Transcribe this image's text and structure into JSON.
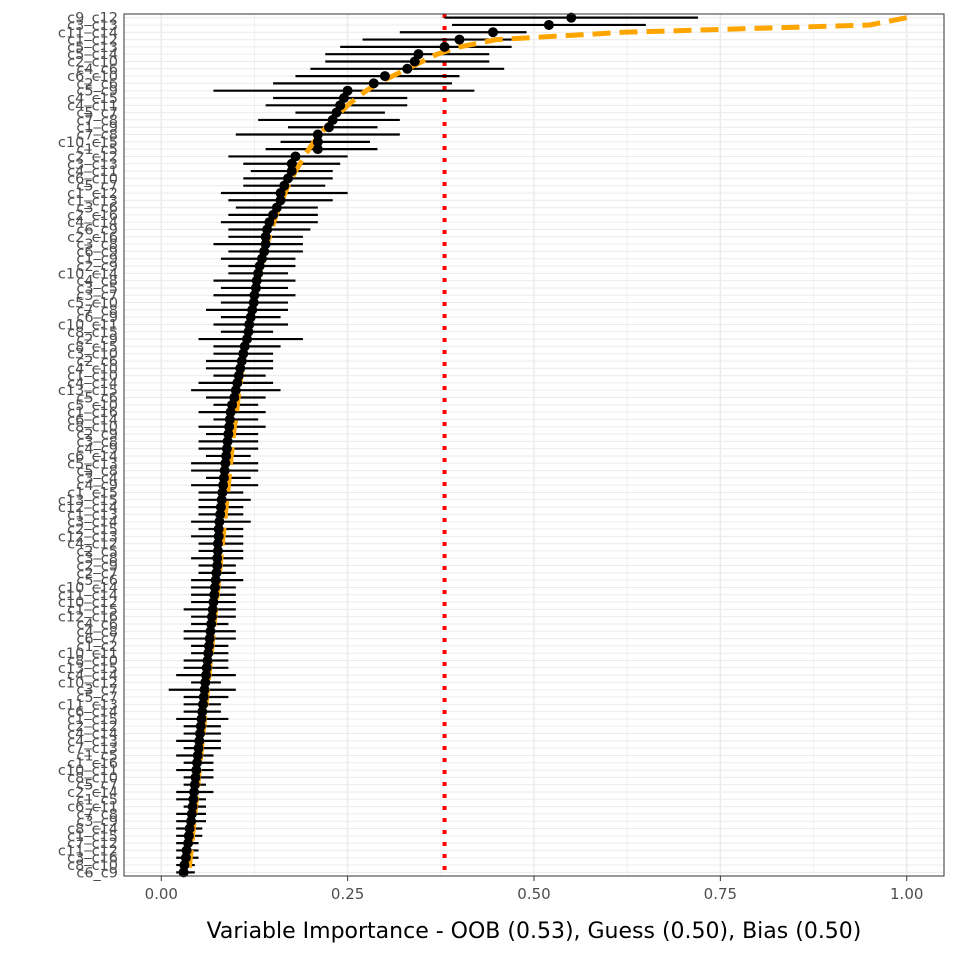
{
  "chart_data": {
    "type": "scatter",
    "title": "",
    "xlabel": "Variable Importance - OOB (0.53), Guess (0.50), Bias (0.50)",
    "ylabel": "",
    "xlim": [
      -0.05,
      1.05
    ],
    "x_ticks": [
      0.0,
      0.25,
      0.5,
      0.75,
      1.0
    ],
    "x_tick_labels": [
      "0.00",
      "0.25",
      "0.50",
      "0.75",
      "1.00"
    ],
    "grid": true,
    "threshold_x": 0.38,
    "colors": {
      "points": "#000000",
      "interval": "#000000",
      "reference_curve": "#FFA500",
      "threshold": "#FF0000",
      "grid_major": "#EBEBEB",
      "grid_minor": "#F2F2F2",
      "panel_border": "#333333"
    },
    "variables": [
      "c9_c12",
      "c3_c13",
      "c11_c14",
      "c1_c12",
      "c5_c13",
      "c5_c14",
      "c2_c10",
      "c4_c6",
      "c6_c10",
      "c2_c6",
      "c5_c9",
      "c4_c15",
      "c4_c11",
      "c5_c7",
      "c7_c8",
      "c1_c9",
      "c7_c8",
      "c10_c15",
      "c1_c5",
      "c2_c12",
      "c3_c13",
      "c4_c11",
      "c6_c10",
      "c5_c7",
      "c1_c12",
      "c1_c13",
      "c3_c6",
      "c2_c16",
      "c4_c14",
      "c6_c9",
      "c2_c16",
      "c3_c8",
      "c6_c9",
      "c1_c9",
      "c2_c9",
      "c10_c14",
      "c4_c8",
      "c3_c5",
      "c3_c7",
      "c5_c10",
      "c7_c8",
      "c6_c9",
      "c10_c11",
      "c8_c15",
      "c2_c9",
      "c8_c15",
      "c3_c10",
      "c2_c6",
      "c4_c10",
      "c1_c10",
      "c4_c14",
      "c13_c15",
      "c5_c6",
      "c5_c10",
      "c1_c16",
      "c6_c14",
      "c8_c10",
      "c2_c9",
      "c3_c8",
      "c4_c9",
      "c6_c14",
      "c5_c13",
      "c5_c8",
      "c3_c4",
      "c4_c9",
      "c1_c15",
      "c13_c15",
      "c12_c14",
      "c1_c13",
      "c3_c14",
      "c2_c15",
      "c12_c13",
      "c4_c12",
      "c2_c5",
      "c3_c8",
      "c2_c9",
      "c2_c7",
      "c5_c6",
      "c10_c14",
      "c11_c14",
      "c10_c12",
      "c1_c15",
      "c12_c16",
      "c4_c6",
      "c4_c8",
      "c6_c7",
      "c1_c2",
      "c10_c11",
      "c8_c10",
      "c13_c15",
      "c4_c14",
      "c10_c12",
      "c3_c7",
      "c5_c7",
      "c11_c13",
      "c6_c14",
      "c1_c15",
      "c2_c12",
      "c4_c14",
      "c4_c13",
      "c7_c13",
      "c1_c5",
      "c1_c16",
      "c10_c11",
      "c8_c10",
      "c5_c7",
      "c2_c14",
      "c1_c5",
      "c6_c11",
      "c7_c8",
      "c3_c9",
      "c8_c14",
      "c1_c15",
      "c7_c12",
      "c11_c12",
      "c3_c16",
      "c8_c10",
      "c6_c9"
    ],
    "importance": [
      0.55,
      0.52,
      0.445,
      0.4,
      0.38,
      0.345,
      0.34,
      0.33,
      0.3,
      0.285,
      0.25,
      0.245,
      0.24,
      0.235,
      0.23,
      0.225,
      0.21,
      0.21,
      0.21,
      0.18,
      0.175,
      0.175,
      0.17,
      0.165,
      0.16,
      0.16,
      0.155,
      0.15,
      0.145,
      0.142,
      0.14,
      0.14,
      0.138,
      0.135,
      0.132,
      0.13,
      0.128,
      0.127,
      0.125,
      0.124,
      0.122,
      0.12,
      0.118,
      0.117,
      0.115,
      0.112,
      0.11,
      0.108,
      0.106,
      0.104,
      0.102,
      0.1,
      0.098,
      0.095,
      0.093,
      0.092,
      0.091,
      0.09,
      0.089,
      0.088,
      0.087,
      0.086,
      0.085,
      0.084,
      0.083,
      0.082,
      0.081,
      0.08,
      0.079,
      0.078,
      0.077,
      0.077,
      0.076,
      0.076,
      0.075,
      0.075,
      0.074,
      0.073,
      0.072,
      0.071,
      0.07,
      0.069,
      0.068,
      0.067,
      0.066,
      0.065,
      0.064,
      0.063,
      0.062,
      0.061,
      0.06,
      0.059,
      0.058,
      0.057,
      0.056,
      0.055,
      0.054,
      0.053,
      0.052,
      0.051,
      0.05,
      0.049,
      0.048,
      0.047,
      0.046,
      0.045,
      0.044,
      0.043,
      0.042,
      0.041,
      0.04,
      0.038,
      0.037,
      0.036,
      0.034,
      0.033,
      0.031,
      0.03
    ],
    "interval_low": [
      0.38,
      0.39,
      0.32,
      0.27,
      0.24,
      0.22,
      0.22,
      0.2,
      0.18,
      0.15,
      0.07,
      0.15,
      0.14,
      0.18,
      0.13,
      0.17,
      0.1,
      0.16,
      0.14,
      0.09,
      0.11,
      0.12,
      0.11,
      0.11,
      0.08,
      0.09,
      0.1,
      0.09,
      0.08,
      0.09,
      0.09,
      0.07,
      0.09,
      0.08,
      0.09,
      0.09,
      0.07,
      0.08,
      0.07,
      0.08,
      0.06,
      0.08,
      0.07,
      0.08,
      0.05,
      0.07,
      0.07,
      0.06,
      0.06,
      0.07,
      0.05,
      0.04,
      0.06,
      0.07,
      0.05,
      0.07,
      0.05,
      0.06,
      0.05,
      0.05,
      0.06,
      0.04,
      0.04,
      0.06,
      0.04,
      0.05,
      0.05,
      0.05,
      0.05,
      0.04,
      0.05,
      0.04,
      0.05,
      0.05,
      0.04,
      0.05,
      0.05,
      0.04,
      0.04,
      0.04,
      0.04,
      0.03,
      0.04,
      0.04,
      0.03,
      0.03,
      0.04,
      0.04,
      0.03,
      0.03,
      0.02,
      0.04,
      0.01,
      0.03,
      0.03,
      0.03,
      0.02,
      0.03,
      0.03,
      0.02,
      0.03,
      0.02,
      0.03,
      0.02,
      0.03,
      0.03,
      0.02,
      0.02,
      0.03,
      0.02,
      0.02,
      0.02,
      0.02,
      0.02,
      0.02,
      0.02,
      0.02,
      0.02
    ],
    "interval_high": [
      0.72,
      0.65,
      0.49,
      0.47,
      0.47,
      0.44,
      0.44,
      0.46,
      0.4,
      0.39,
      0.42,
      0.33,
      0.33,
      0.3,
      0.32,
      0.29,
      0.32,
      0.28,
      0.29,
      0.25,
      0.24,
      0.23,
      0.23,
      0.22,
      0.25,
      0.23,
      0.21,
      0.21,
      0.21,
      0.2,
      0.19,
      0.19,
      0.19,
      0.18,
      0.18,
      0.17,
      0.18,
      0.17,
      0.18,
      0.17,
      0.17,
      0.16,
      0.17,
      0.15,
      0.19,
      0.16,
      0.15,
      0.15,
      0.15,
      0.14,
      0.15,
      0.16,
      0.14,
      0.13,
      0.14,
      0.13,
      0.14,
      0.13,
      0.13,
      0.13,
      0.12,
      0.13,
      0.13,
      0.12,
      0.13,
      0.11,
      0.12,
      0.11,
      0.11,
      0.12,
      0.11,
      0.11,
      0.11,
      0.11,
      0.11,
      0.1,
      0.1,
      0.11,
      0.1,
      0.1,
      0.1,
      0.1,
      0.1,
      0.09,
      0.1,
      0.1,
      0.09,
      0.09,
      0.09,
      0.09,
      0.1,
      0.08,
      0.1,
      0.09,
      0.08,
      0.08,
      0.09,
      0.08,
      0.08,
      0.08,
      0.08,
      0.07,
      0.07,
      0.07,
      0.07,
      0.06,
      0.07,
      0.06,
      0.06,
      0.06,
      0.06,
      0.055,
      0.055,
      0.05,
      0.05,
      0.05,
      0.045,
      0.045
    ],
    "reference_curve": [
      1.0,
      0.95,
      0.62,
      0.45,
      0.4,
      0.37,
      0.35,
      0.33,
      0.31,
      0.29,
      0.275,
      0.262,
      0.25,
      0.24,
      0.23,
      0.221,
      0.213,
      0.205,
      0.198,
      0.192,
      0.186,
      0.18,
      0.175,
      0.17,
      0.166,
      0.162,
      0.158,
      0.154,
      0.151,
      0.148,
      0.145,
      0.142,
      0.139,
      0.137,
      0.134,
      0.132,
      0.13,
      0.128,
      0.126,
      0.124,
      0.122,
      0.12,
      0.118,
      0.116,
      0.115,
      0.113,
      0.112,
      0.11,
      0.109,
      0.107,
      0.106,
      0.105,
      0.103,
      0.102,
      0.101,
      0.1,
      0.098,
      0.097,
      0.096,
      0.095,
      0.094,
      0.093,
      0.092,
      0.091,
      0.09,
      0.089,
      0.088,
      0.087,
      0.086,
      0.085,
      0.084,
      0.083,
      0.082,
      0.081,
      0.08,
      0.079,
      0.078,
      0.077,
      0.076,
      0.075,
      0.074,
      0.073,
      0.072,
      0.071,
      0.07,
      0.069,
      0.068,
      0.067,
      0.066,
      0.065,
      0.064,
      0.063,
      0.062,
      0.061,
      0.06,
      0.059,
      0.058,
      0.057,
      0.056,
      0.055,
      0.054,
      0.053,
      0.052,
      0.051,
      0.05,
      0.049,
      0.048,
      0.047,
      0.046,
      0.045,
      0.044,
      0.043,
      0.042,
      0.041,
      0.04,
      0.039,
      0.038,
      0.037
    ]
  }
}
